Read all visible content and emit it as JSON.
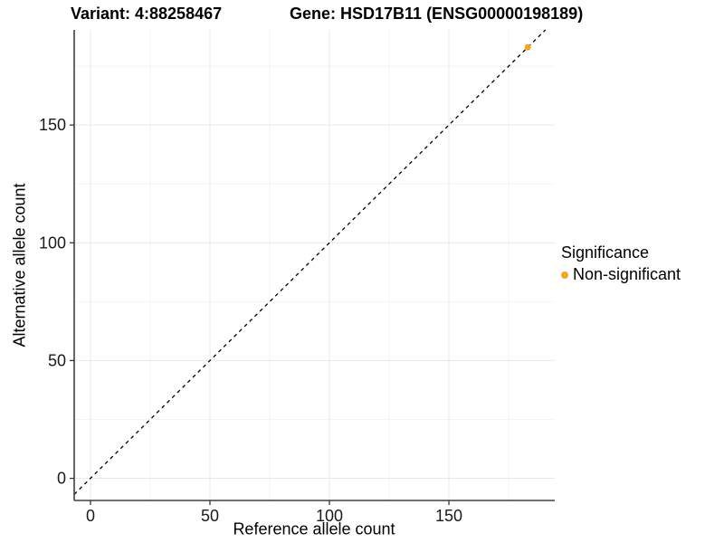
{
  "chart_data": {
    "type": "scatter",
    "title_left": "Variant: 4:88258467",
    "title_right": "Gene: HSD17B11 (ENSG00000198189)",
    "xlabel": "Reference allele count",
    "ylabel": "Alternative allele count",
    "x_ticks": [
      0,
      50,
      100,
      150
    ],
    "y_ticks": [
      0,
      50,
      100,
      150
    ],
    "x_minor_gridlines": [
      25,
      75,
      125,
      175
    ],
    "y_minor_gridlines": [
      25,
      75,
      125,
      175
    ],
    "xlim": [
      -6.8,
      194.3
    ],
    "ylim": [
      -9.4,
      190.4
    ],
    "grid": "major+minor",
    "legend_position": "right",
    "identity_line": {
      "slope": 1,
      "intercept": 0,
      "style": "dashed",
      "color": "#000000"
    },
    "series": [
      {
        "name": "Non-significant",
        "color": "#F9A41F",
        "points": [
          {
            "x": 183,
            "y": 183
          }
        ]
      }
    ]
  },
  "legend": {
    "title": "Significance",
    "items": [
      {
        "label": "Non-significant",
        "color": "#F9A41F",
        "icon": "dot-icon"
      }
    ]
  },
  "colors": {
    "background": "#FFFFFF",
    "axis_line": "#404040",
    "tick_mark": "#333333",
    "tick_label": "#1A1A1A",
    "grid_major": "#E9E9E9",
    "grid_minor": "#F4F4F4",
    "point": "#F9A41F"
  }
}
